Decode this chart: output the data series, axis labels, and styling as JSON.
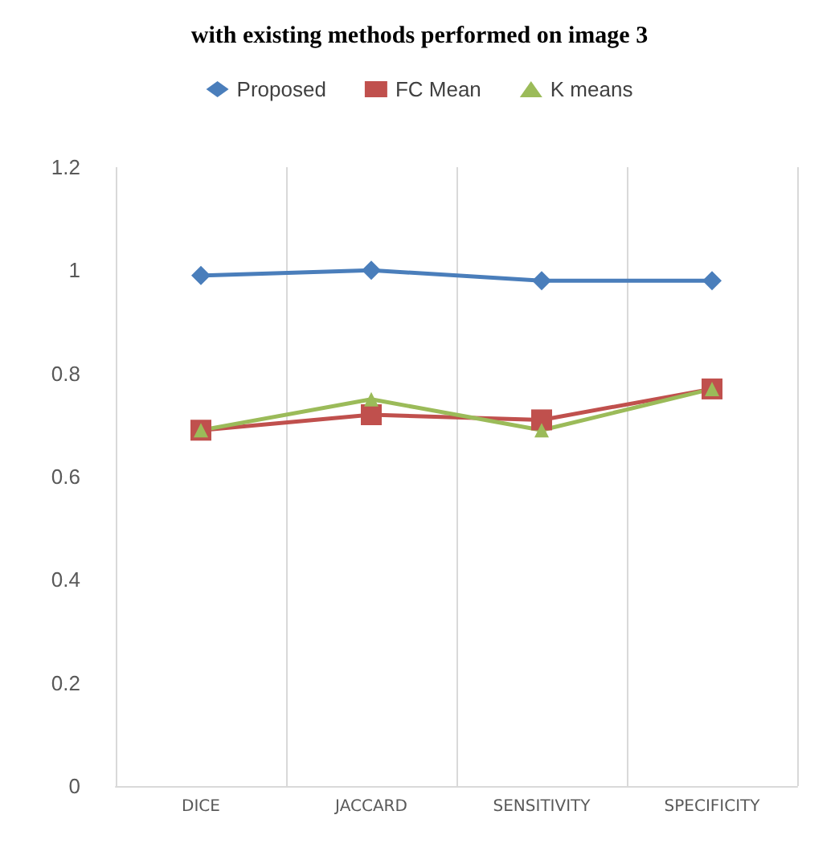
{
  "chart_data": {
    "type": "line",
    "title": "with existing methods performed on image 3",
    "categories": [
      "DICE",
      "JACCARD",
      "SENSITIVITY",
      "SPECIFICITY"
    ],
    "series": [
      {
        "name": "Proposed",
        "color": "#4a7ebb",
        "marker": "diamond",
        "values": [
          0.99,
          1.0,
          0.98,
          0.98
        ]
      },
      {
        "name": "FC Mean",
        "color": "#c0504d",
        "marker": "square",
        "values": [
          0.69,
          0.72,
          0.71,
          0.77
        ]
      },
      {
        "name": "K means",
        "color": "#9bbb59",
        "marker": "triangle",
        "values": [
          0.69,
          0.75,
          0.69,
          0.77
        ]
      }
    ],
    "ylim": [
      0,
      1.2
    ],
    "yticks": [
      0,
      0.2,
      0.4,
      0.6,
      0.8,
      1,
      1.2
    ],
    "grid": "x",
    "legend": "top"
  }
}
